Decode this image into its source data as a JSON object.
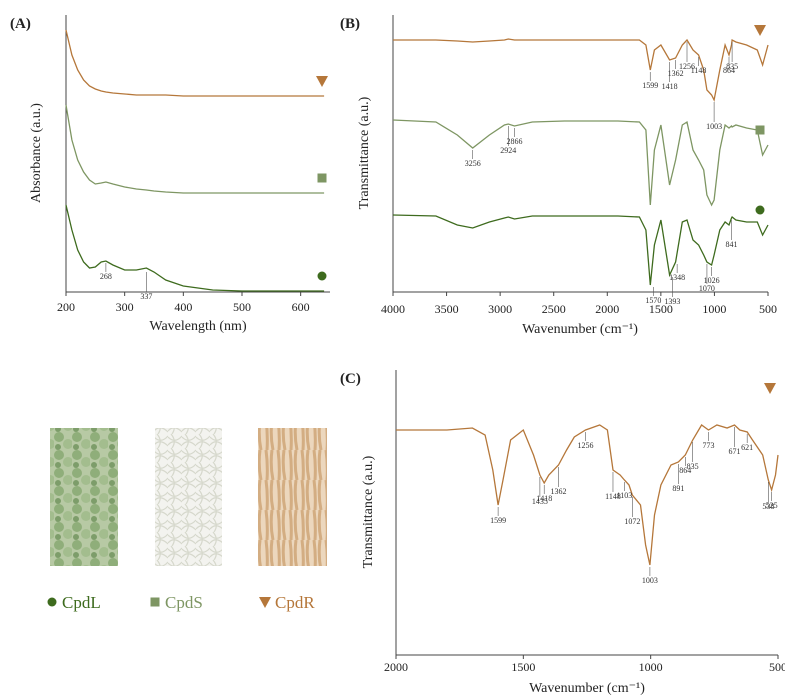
{
  "chart_data": [
    {
      "type": "line",
      "panel": "(A)",
      "ylabel": "Absorbance (a.u.)",
      "xlabel": "Wavelength (nm)",
      "xlim": [
        200,
        650
      ],
      "xticks": [
        200,
        300,
        400,
        500,
        600
      ],
      "ylim": [
        0,
        277
      ],
      "x": [
        200,
        210,
        220,
        230,
        240,
        250,
        260,
        268,
        280,
        300,
        320,
        337,
        350,
        370,
        400,
        450,
        500,
        550,
        600,
        640
      ],
      "series": [
        {
          "color": "#b5773a",
          "marker": "triangle",
          "values": [
            262,
            237,
            222,
            212,
            206,
            203,
            201,
            200,
            199,
            198,
            197,
            197,
            197,
            197,
            196,
            196,
            196,
            196,
            196,
            196
          ],
          "peaks": []
        },
        {
          "color": "#7e9663",
          "marker": "square",
          "values": [
            187,
            152,
            132,
            120,
            112,
            108,
            109,
            110,
            108,
            105,
            103,
            102,
            101,
            100,
            99,
            99,
            99,
            99,
            99,
            99
          ],
          "peaks": []
        },
        {
          "color": "#3e6b1e",
          "marker": "circle",
          "values": [
            87,
            62,
            42,
            30,
            24,
            25,
            30,
            31,
            27,
            22,
            22,
            24,
            20,
            12,
            6,
            2,
            1,
            1,
            1,
            1
          ],
          "peaks": [
            {
              "x": 268,
              "y": 31
            },
            {
              "x": 337,
              "y": 22
            }
          ]
        }
      ]
    },
    {
      "type": "line",
      "panel": "(B)",
      "ylabel": "Transmittance (a.u.)",
      "xlabel": "Wavenumber (cm⁻¹)",
      "xlim": [
        4000,
        500
      ],
      "xticks": [
        4000,
        3500,
        3000,
        2500,
        2000,
        1500,
        1000,
        500
      ],
      "ylim": [
        0,
        277
      ],
      "x": [
        4000,
        3600,
        3400,
        3256,
        3100,
        2960,
        2924,
        2866,
        2700,
        2400,
        2100,
        1900,
        1700,
        1640,
        1599,
        1560,
        1500,
        1418,
        1362,
        1300,
        1256,
        1200,
        1148,
        1100,
        1070,
        1026,
        1003,
        950,
        900,
        864,
        841,
        835,
        800,
        700,
        600,
        550,
        500
      ],
      "series": [
        {
          "color": "#b5773a",
          "marker": "triangle",
          "values": [
            252,
            252,
            251,
            250,
            251,
            252,
            253,
            252,
            252,
            252,
            252,
            252,
            252,
            247,
            222,
            242,
            247,
            232,
            234,
            247,
            252,
            242,
            237,
            222,
            202,
            197,
            192,
            222,
            247,
            237,
            247,
            252,
            250,
            247,
            242,
            227,
            247
          ],
          "peaks": [
            {
              "x": 1599,
              "y": 222
            },
            {
              "x": 1418,
              "y": 232
            },
            {
              "x": 1362,
              "y": 234
            },
            {
              "x": 1256,
              "y": 252
            },
            {
              "x": 1148,
              "y": 237
            },
            {
              "x": 1003,
              "y": 192
            },
            {
              "x": 864,
              "y": 237
            },
            {
              "x": 835,
              "y": 252
            }
          ]
        },
        {
          "color": "#7e9663",
          "marker": "square",
          "values": [
            172,
            170,
            157,
            144,
            157,
            167,
            168,
            166,
            170,
            171,
            171,
            171,
            170,
            162,
            87,
            142,
            167,
            107,
            132,
            167,
            170,
            142,
            132,
            122,
            97,
            87,
            92,
            142,
            167,
            164,
            166,
            165,
            167,
            164,
            162,
            137,
            147
          ],
          "peaks": [
            {
              "x": 3256,
              "y": 144
            },
            {
              "x": 2924,
              "y": 168
            },
            {
              "x": 2866,
              "y": 166
            }
          ]
        },
        {
          "color": "#3e6b1e",
          "marker": "circle",
          "values": [
            77,
            76,
            67,
            64,
            70,
            74,
            75,
            73,
            76,
            76,
            76,
            76,
            75,
            62,
            7,
            47,
            72,
            17,
            30,
            70,
            72,
            52,
            47,
            37,
            30,
            27,
            37,
            62,
            70,
            67,
            74,
            75,
            72,
            70,
            70,
            57,
            67
          ],
          "peaks": [
            {
              "x": 1570,
              "y": 7
            },
            {
              "x": 1393,
              "y": 17
            },
            {
              "x": 1348,
              "y": 30
            },
            {
              "x": 1070,
              "y": 30
            },
            {
              "x": 1026,
              "y": 27
            },
            {
              "x": 841,
              "y": 74
            }
          ]
        }
      ]
    },
    {
      "type": "line",
      "panel": "(C)",
      "ylabel": "Transmittance (a.u.)",
      "xlabel": "Wavenumber (cm⁻¹)",
      "xlim": [
        2000,
        500
      ],
      "xticks": [
        2000,
        1500,
        1000,
        500
      ],
      "ylim": [
        0,
        285
      ],
      "x": [
        2000,
        1900,
        1800,
        1700,
        1650,
        1620,
        1599,
        1580,
        1550,
        1500,
        1460,
        1435,
        1418,
        1400,
        1362,
        1330,
        1300,
        1256,
        1200,
        1170,
        1148,
        1120,
        1103,
        1085,
        1072,
        1040,
        1020,
        1003,
        985,
        960,
        920,
        891,
        864,
        835,
        800,
        773,
        740,
        700,
        671,
        650,
        621,
        600,
        560,
        538,
        525,
        510,
        500
      ],
      "series": [
        {
          "color": "#b5773a",
          "marker": "triangle",
          "values": [
            225,
            225,
            225,
            227,
            220,
            185,
            150,
            175,
            215,
            225,
            200,
            180,
            172,
            180,
            190,
            205,
            218,
            225,
            230,
            225,
            185,
            180,
            175,
            170,
            160,
            150,
            110,
            90,
            140,
            170,
            190,
            193,
            200,
            215,
            230,
            225,
            230,
            227,
            230,
            225,
            223,
            215,
            200,
            175,
            165,
            180,
            200
          ],
          "peaks": [
            {
              "x": 1599,
              "y": 150
            },
            {
              "x": 1435,
              "y": 180
            },
            {
              "x": 1418,
              "y": 172
            },
            {
              "x": 1362,
              "y": 190
            },
            {
              "x": 1256,
              "y": 225
            },
            {
              "x": 1148,
              "y": 185
            },
            {
              "x": 1103,
              "y": 175
            },
            {
              "x": 1072,
              "y": 160
            },
            {
              "x": 1003,
              "y": 90
            },
            {
              "x": 891,
              "y": 193
            },
            {
              "x": 864,
              "y": 200
            },
            {
              "x": 835,
              "y": 215
            },
            {
              "x": 773,
              "y": 225
            },
            {
              "x": 671,
              "y": 230
            },
            {
              "x": 621,
              "y": 223
            },
            {
              "x": 538,
              "y": 175
            },
            {
              "x": 525,
              "y": 165
            }
          ]
        }
      ]
    }
  ],
  "legend": [
    {
      "name": "CpdL",
      "color": "#3e6b1e",
      "marker": "circle"
    },
    {
      "name": "CpdS",
      "color": "#7e9663",
      "marker": "square"
    },
    {
      "name": "CpdR",
      "color": "#b5773a",
      "marker": "triangle"
    }
  ]
}
